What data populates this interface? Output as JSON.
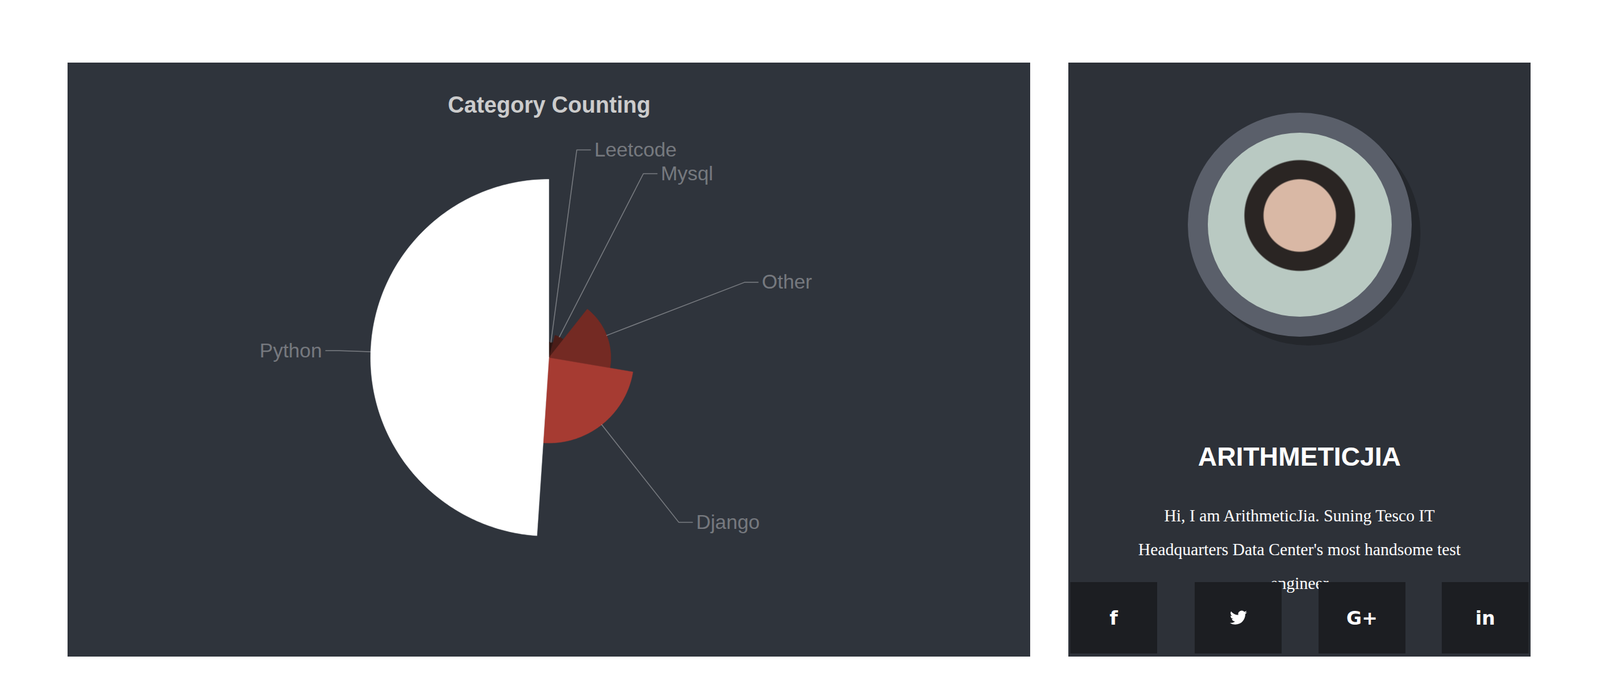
{
  "chart_data": {
    "type": "rose",
    "title": "Category Counting",
    "categories": [
      "Leetcode",
      "Mysql",
      "Other",
      "Django",
      "Python"
    ],
    "values": [
      2,
      3,
      8,
      11,
      23
    ],
    "colors": [
      "#2c1613",
      "#4a1d18",
      "#742a23",
      "#a63b32",
      "#ffffff"
    ]
  },
  "profile": {
    "name": "ARITHMETICJIA",
    "bio": "Hi, I am ArithmeticJia. Suning Tesco IT Headquarters Data Center's most handsome test engineer",
    "social": [
      "f",
      "G+",
      "in"
    ]
  }
}
